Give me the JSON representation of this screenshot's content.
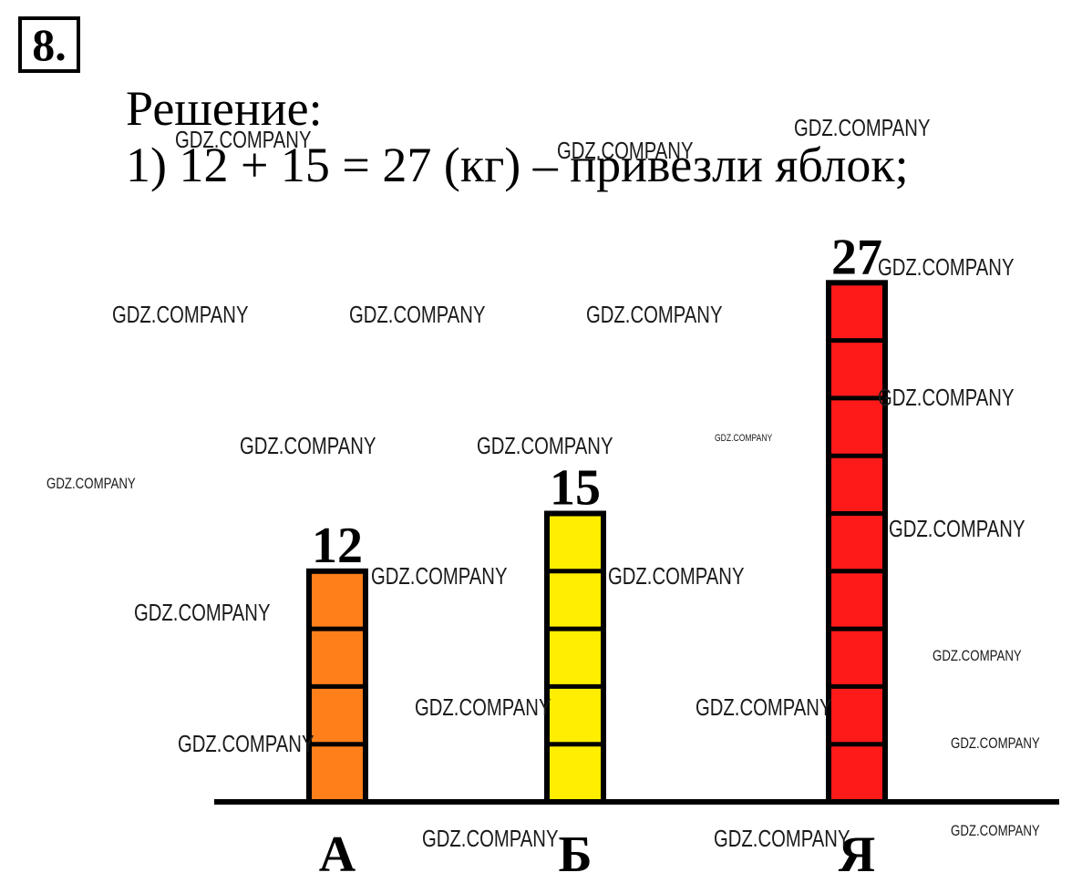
{
  "task": {
    "number": "8."
  },
  "solution": {
    "heading": "Решение:",
    "step1": "1)  12 + 15 = 27 (кг) – привезли яблок;"
  },
  "watermark": "GDZ.COMPANY",
  "chart_data": {
    "type": "bar",
    "categories": [
      "А",
      "Б",
      "Я"
    ],
    "values": [
      12,
      15,
      27
    ],
    "value_labels": [
      "12",
      "15",
      "27"
    ],
    "title": "",
    "xlabel": "",
    "ylabel": "",
    "ylim": [
      0,
      27
    ],
    "grid": false,
    "colors": [
      "#ff7f1a",
      "#ffee00",
      "#ff1a1a"
    ],
    "segment_size": 3,
    "bar_outline_color": "#000000"
  }
}
